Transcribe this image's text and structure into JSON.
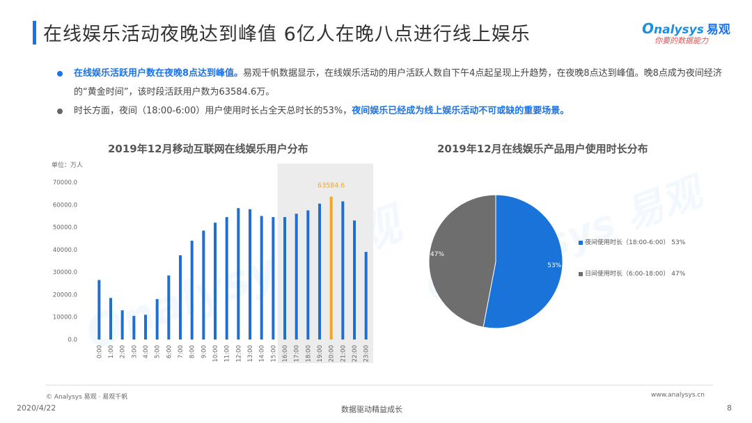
{
  "header": {
    "title": "在线娱乐活动夜晚达到峰值 6亿人在晚八点进行线上娱乐",
    "logo_text": "nalysys",
    "logo_cn": "易观",
    "logo_slogan": "你要的数据能力"
  },
  "bullets": [
    {
      "highlight": "在线娱乐活跃用户数在夜晚8点达到峰值。",
      "text": "易观千帆数据显示，在线娱乐活动的用户活跃人数自下午4点起呈现上升趋势，在夜晚8点达到峰值。晚8点成为夜间经济的“黄金时间”，该时段活跃用户数为63584.6万。"
    },
    {
      "text": "时长方面，夜间（18:00-6:00）用户使用时长占全天总时长的53%，",
      "highlight": "夜间娱乐已经成为线上娱乐活动不可或缺的重要场景。"
    }
  ],
  "colors": {
    "accent": "#1a73e8",
    "bar": "#1e6fd0",
    "peak": "#f5a623",
    "pie_night": "#1a73d9",
    "pie_day": "#6e6e6e",
    "highlight_band": "#ececec"
  },
  "chart_data": [
    {
      "type": "bar",
      "title": "2019年12月移动互联网在线娱乐用户分布",
      "unit_label": "单位：万人",
      "categories": [
        "0:00",
        "1:00",
        "2:00",
        "3:00",
        "4:00",
        "5:00",
        "6:00",
        "7:00",
        "8:00",
        "9:00",
        "10:00",
        "11:00",
        "12:00",
        "13:00",
        "14:00",
        "15:00",
        "16:00",
        "17:00",
        "18:00",
        "19:00",
        "20:00",
        "21:00",
        "22:00",
        "23:00"
      ],
      "values": [
        26500,
        18500,
        13000,
        10500,
        11000,
        18000,
        28500,
        37500,
        44000,
        48500,
        52000,
        54500,
        58500,
        58000,
        55000,
        54500,
        54500,
        56000,
        57500,
        60500,
        63584.6,
        61500,
        53000,
        39000
      ],
      "ylim": [
        0,
        70000
      ],
      "yticks": [
        "0.0",
        "10000.0",
        "20000.0",
        "30000.0",
        "40000.0",
        "50000.0",
        "60000.0",
        "70000.0"
      ],
      "peak_index": 20,
      "peak_label": "63584.6",
      "highlight_range": [
        "16:00",
        "23:00"
      ],
      "grid": false
    },
    {
      "type": "pie",
      "title": "2019年12月在线娱乐产品用户使用时长分布",
      "slices": [
        {
          "name": "夜间使用时长（18:00-6:00）",
          "value": 53,
          "label": "53%",
          "legend": "夜间使用时长（18:00-6:00）  53%"
        },
        {
          "name": "日间使用时长（6:00-18:00）",
          "value": 47,
          "label": "47%",
          "legend": "日间使用时长（6:00-18:00）  47%"
        }
      ],
      "legend_position": "right"
    }
  ],
  "footer": {
    "copyright": "© Analysys 易观 · 易观千帆",
    "site": "www.analysys.cn",
    "date": "2020/4/22",
    "slogan": "数据驱动精益成长",
    "page": "8"
  }
}
